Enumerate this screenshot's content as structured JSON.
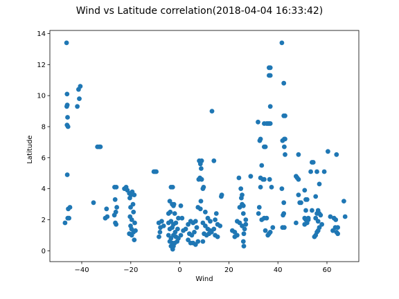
{
  "chart_data": {
    "type": "scatter",
    "title": "Wind vs Latitude correlation(2018-04-04 16:33:42)",
    "xlabel": "Wind",
    "ylabel": "Latitude",
    "xlim": [
      -53,
      73
    ],
    "ylim": [
      -0.7,
      14.2
    ],
    "xticks": [
      -40,
      -20,
      0,
      20,
      40,
      60
    ],
    "yticks": [
      0,
      2,
      4,
      6,
      8,
      10,
      12,
      14
    ],
    "grid": false,
    "marker_color": "#1f77b4",
    "points": [
      [
        -46.2,
        13.4
      ],
      [
        -46.0,
        10.1
      ],
      [
        -45.9,
        9.4
      ],
      [
        -46.1,
        9.3
      ],
      [
        -45.8,
        8.6
      ],
      [
        -46.0,
        8.1
      ],
      [
        -45.6,
        8.0
      ],
      [
        -45.9,
        4.9
      ],
      [
        -45.5,
        2.7
      ],
      [
        -44.8,
        2.8
      ],
      [
        -45.7,
        2.1
      ],
      [
        -45.2,
        2.1
      ],
      [
        -46.8,
        1.8
      ],
      [
        -41.3,
        10.4
      ],
      [
        -40.6,
        10.6
      ],
      [
        -41.8,
        9.3
      ],
      [
        -41.0,
        9.8
      ],
      [
        -33.6,
        6.7
      ],
      [
        -32.9,
        6.7
      ],
      [
        -32.4,
        6.7
      ],
      [
        -35.2,
        3.1
      ],
      [
        -30.4,
        2.1
      ],
      [
        -29.6,
        2.2
      ],
      [
        -29.9,
        2.7
      ],
      [
        -26.6,
        4.1
      ],
      [
        -25.9,
        4.1
      ],
      [
        -26.4,
        3.3
      ],
      [
        -25.7,
        2.8
      ],
      [
        -26.1,
        2.5
      ],
      [
        -26.7,
        2.3
      ],
      [
        -26.0,
        1.7
      ],
      [
        -26.3,
        1.8
      ],
      [
        -22.6,
        4.0
      ],
      [
        -21.9,
        4.1
      ],
      [
        -21.4,
        3.9
      ],
      [
        -20.6,
        3.7
      ],
      [
        -19.9,
        3.6
      ],
      [
        -19.4,
        3.8
      ],
      [
        -18.6,
        3.6
      ],
      [
        -20.4,
        3.4
      ],
      [
        -19.1,
        3.0
      ],
      [
        -20.1,
        2.8
      ],
      [
        -18.9,
        2.5
      ],
      [
        -20.3,
        2.2
      ],
      [
        -19.6,
        2.0
      ],
      [
        -18.4,
        1.8
      ],
      [
        -20.1,
        1.6
      ],
      [
        -19.7,
        1.4
      ],
      [
        -18.9,
        1.2
      ],
      [
        -19.6,
        1.0
      ],
      [
        -18.1,
        1.3
      ],
      [
        -18.6,
        0.7
      ],
      [
        -20.6,
        1.1
      ],
      [
        -10.6,
        5.1
      ],
      [
        -10.1,
        5.1
      ],
      [
        -9.6,
        5.1
      ],
      [
        -8.6,
        1.8
      ],
      [
        -7.9,
        1.5
      ],
      [
        -8.1,
        1.2
      ],
      [
        -7.4,
        1.9
      ],
      [
        -8.5,
        0.9
      ],
      [
        -6.6,
        1.6
      ],
      [
        -3.6,
        4.1
      ],
      [
        -2.9,
        4.1
      ],
      [
        -4.1,
        3.2
      ],
      [
        -3.1,
        3.0
      ],
      [
        -2.6,
        2.9
      ],
      [
        -4.6,
        2.4
      ],
      [
        -3.9,
        2.5
      ],
      [
        -2.1,
        2.4
      ],
      [
        -4.6,
        1.8
      ],
      [
        -3.6,
        1.9
      ],
      [
        -2.6,
        1.7
      ],
      [
        -1.6,
        1.8
      ],
      [
        -4.1,
        1.4
      ],
      [
        -3.1,
        1.5
      ],
      [
        -1.9,
        1.2
      ],
      [
        -0.9,
        1.4
      ],
      [
        -4.6,
        1.0
      ],
      [
        -3.6,
        0.8
      ],
      [
        -2.6,
        1.0
      ],
      [
        -1.6,
        0.9
      ],
      [
        -0.6,
        0.8
      ],
      [
        0.4,
        1.0
      ],
      [
        -4.1,
        0.6
      ],
      [
        -3.1,
        0.5
      ],
      [
        -2.1,
        0.5
      ],
      [
        -1.1,
        0.6
      ],
      [
        -3.6,
        0.3
      ],
      [
        -2.9,
        0.1
      ],
      [
        -2.6,
        0.3
      ],
      [
        -0.6,
        2.1
      ],
      [
        0.9,
        2.1
      ],
      [
        1.4,
        1.3
      ],
      [
        0.4,
        2.9
      ],
      [
        -2.4,
        3.0
      ],
      [
        3.4,
        1.7
      ],
      [
        4.4,
        1.9
      ],
      [
        5.4,
        1.8
      ],
      [
        6.4,
        1.9
      ],
      [
        3.9,
        1.1
      ],
      [
        4.9,
        1.0
      ],
      [
        5.9,
        1.2
      ],
      [
        6.9,
        1.5
      ],
      [
        3.4,
        0.7
      ],
      [
        4.4,
        0.5
      ],
      [
        5.4,
        0.5
      ],
      [
        6.4,
        0.4
      ],
      [
        7.4,
        0.6
      ],
      [
        2.4,
        1.4
      ],
      [
        7.9,
        5.8
      ],
      [
        8.4,
        5.6
      ],
      [
        8.9,
        5.8
      ],
      [
        7.7,
        4.6
      ],
      [
        8.2,
        4.7
      ],
      [
        8.9,
        4.6
      ],
      [
        9.4,
        4.0
      ],
      [
        8.6,
        3.2
      ],
      [
        8.4,
        2.7
      ],
      [
        7.4,
        2.8
      ],
      [
        8.7,
        5.3
      ],
      [
        9.7,
        4.1
      ],
      [
        10.4,
        2.5
      ],
      [
        11.4,
        2.1
      ],
      [
        12.4,
        1.9
      ],
      [
        9.4,
        1.8
      ],
      [
        10.4,
        1.6
      ],
      [
        11.4,
        1.4
      ],
      [
        12.4,
        1.3
      ],
      [
        9.9,
        1.1
      ],
      [
        10.9,
        1.0
      ],
      [
        11.9,
        1.1
      ],
      [
        12.9,
        1.2
      ],
      [
        9.4,
        0.6
      ],
      [
        13.1,
        9.0
      ],
      [
        13.9,
        5.8
      ],
      [
        14.4,
        2.0
      ],
      [
        15.4,
        1.7
      ],
      [
        14.9,
        2.4
      ],
      [
        16.4,
        1.6
      ],
      [
        17.1,
        3.6
      ],
      [
        16.9,
        3.5
      ],
      [
        14.4,
        1.0
      ],
      [
        15.4,
        0.9
      ],
      [
        13.9,
        1.4
      ],
      [
        21.4,
        1.3
      ],
      [
        22.4,
        1.2
      ],
      [
        23.4,
        1.0
      ],
      [
        22.4,
        0.9
      ],
      [
        23.4,
        1.9
      ],
      [
        24.4,
        1.8
      ],
      [
        24.1,
        4.7
      ],
      [
        24.9,
        4.0
      ],
      [
        25.4,
        3.6
      ],
      [
        25.1,
        3.4
      ],
      [
        25.9,
        2.9
      ],
      [
        25.4,
        3.0
      ],
      [
        24.4,
        2.8
      ],
      [
        25.9,
        2.4
      ],
      [
        25.4,
        1.6
      ],
      [
        26.4,
        1.4
      ],
      [
        26.9,
        1.7
      ],
      [
        26.1,
        1.1
      ],
      [
        25.9,
        0.6
      ],
      [
        26.1,
        0.3
      ],
      [
        28.9,
        4.8
      ],
      [
        26.9,
        2.0
      ],
      [
        31.9,
        8.3
      ],
      [
        32.6,
        7.1
      ],
      [
        32.9,
        7.2
      ],
      [
        33.4,
        5.5
      ],
      [
        32.9,
        4.7
      ],
      [
        33.9,
        4.6
      ],
      [
        34.4,
        4.6
      ],
      [
        32.9,
        4.1
      ],
      [
        32.4,
        2.8
      ],
      [
        32.1,
        2.4
      ],
      [
        33.4,
        2.0
      ],
      [
        34.4,
        2.1
      ],
      [
        35.4,
        2.1
      ],
      [
        34.9,
        1.3
      ],
      [
        35.9,
        1.0
      ],
      [
        36.4,
        1.1
      ],
      [
        36.9,
        1.2
      ],
      [
        34.4,
        6.7
      ],
      [
        34.9,
        6.7
      ],
      [
        34.4,
        8.2
      ],
      [
        35.4,
        8.2
      ],
      [
        35.9,
        8.2
      ],
      [
        36.4,
        8.2
      ],
      [
        36.9,
        8.2
      ],
      [
        36.4,
        11.8
      ],
      [
        36.9,
        11.8
      ],
      [
        36.4,
        11.3
      ],
      [
        36.9,
        11.3
      ],
      [
        36.9,
        9.3
      ],
      [
        36.6,
        4.6
      ],
      [
        37.4,
        4.1
      ],
      [
        37.9,
        1.5
      ],
      [
        41.6,
        13.4
      ],
      [
        42.4,
        10.8
      ],
      [
        41.9,
        7.1
      ],
      [
        42.6,
        7.2
      ],
      [
        42.9,
        7.2
      ],
      [
        42.6,
        6.7
      ],
      [
        42.4,
        8.7
      ],
      [
        42.9,
        8.7
      ],
      [
        42.9,
        6.2
      ],
      [
        41.6,
        4.0
      ],
      [
        42.4,
        3.1
      ],
      [
        42.4,
        2.4
      ],
      [
        42.1,
        2.3
      ],
      [
        41.9,
        1.5
      ],
      [
        42.6,
        1.5
      ],
      [
        47.4,
        4.8
      ],
      [
        47.9,
        4.7
      ],
      [
        48.4,
        4.6
      ],
      [
        48.4,
        6.2
      ],
      [
        48.4,
        3.6
      ],
      [
        49.4,
        3.1
      ],
      [
        48.9,
        3.1
      ],
      [
        47.4,
        1.8
      ],
      [
        50.9,
        3.9
      ],
      [
        51.4,
        3.3
      ],
      [
        51.9,
        3.3
      ],
      [
        51.4,
        2.6
      ],
      [
        50.9,
        2.1
      ],
      [
        51.4,
        2.0
      ],
      [
        52.4,
        2.0
      ],
      [
        50.9,
        1.7
      ],
      [
        51.9,
        1.8
      ],
      [
        52.4,
        2.1
      ],
      [
        53.4,
        5.1
      ],
      [
        53.9,
        5.7
      ],
      [
        54.4,
        5.7
      ],
      [
        53.9,
        2.6
      ],
      [
        55.4,
        3.5
      ],
      [
        56.4,
        2.6
      ],
      [
        56.9,
        2.4
      ],
      [
        55.9,
        2.4
      ],
      [
        55.4,
        2.1
      ],
      [
        56.4,
        1.9
      ],
      [
        57.4,
        2.3
      ],
      [
        56.9,
        1.5
      ],
      [
        55.9,
        1.2
      ],
      [
        55.4,
        1.0
      ],
      [
        54.9,
        0.9
      ],
      [
        56.4,
        1.3
      ],
      [
        56.9,
        4.3
      ],
      [
        55.9,
        5.1
      ],
      [
        57.9,
        1.7
      ],
      [
        58.9,
        5.1
      ],
      [
        60.4,
        6.4
      ],
      [
        62.9,
        2.1
      ],
      [
        63.4,
        1.5
      ],
      [
        63.9,
        1.2
      ],
      [
        63.6,
        2.0
      ],
      [
        64.4,
        1.5
      ],
      [
        63.9,
        6.2
      ],
      [
        64.4,
        1.1
      ],
      [
        66.9,
        3.2
      ],
      [
        67.4,
        2.2
      ],
      [
        61.4,
        2.2
      ],
      [
        62.4,
        1.3
      ]
    ]
  }
}
